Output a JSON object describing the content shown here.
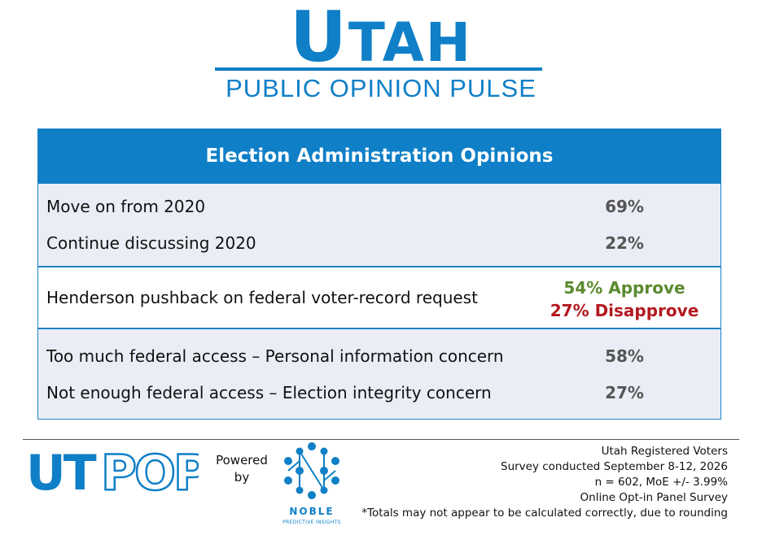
{
  "brand": {
    "title_first": "U",
    "title_rest": "TAH",
    "subtitle": "PUBLIC OPINION PULSE",
    "accent_color": "#0f7fc7"
  },
  "table": {
    "header": "Election Administration Opinions",
    "rows": [
      {
        "label": "Move on from 2020",
        "value": "69%"
      },
      {
        "label": "Continue discussing 2020",
        "value": "22%"
      },
      {
        "label": "Henderson pushback on federal voter-record request",
        "approve": "54% Approve",
        "disapprove": "27% Disapprove"
      },
      {
        "label": "Too much federal access – Personal information concern",
        "value": "58%"
      },
      {
        "label": "Not enough federal access – Election integrity concern",
        "value": "27%"
      }
    ],
    "colors": {
      "band": "#eaedf6",
      "approve": "#5b8a2e",
      "disapprove": "#b3191f"
    }
  },
  "footer": {
    "utpop_logo": "UTPOP",
    "powered_by": "Powered by",
    "noble_name": "NOBLE",
    "noble_sub": "PREDICTIVE INSIGHTS",
    "notes": [
      "Utah Registered Voters",
      "Survey conducted September 8-12, 2026",
      "n = 602, MoE +/- 3.99%",
      "Online Opt-in Panel Survey",
      "*Totals may not appear to be calculated correctly, due to rounding"
    ]
  }
}
